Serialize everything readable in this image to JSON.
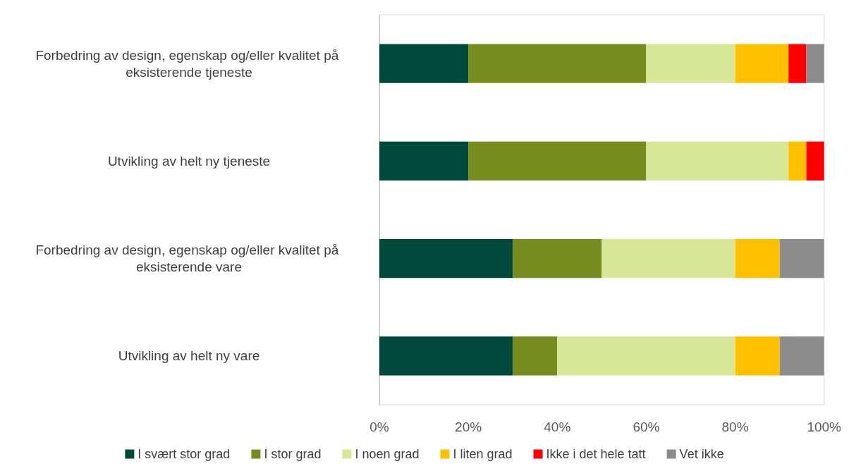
{
  "chart_data": {
    "type": "bar",
    "orientation": "horizontal",
    "stacked": true,
    "categories": [
      "Forbedring av design, egenskap og/eller kvalitet på eksisterende tjeneste",
      "Utvikling av helt ny tjeneste",
      "Forbedring av design, egenskap og/eller kvalitet på eksisterende vare",
      "Utvikling av helt ny vare"
    ],
    "series": [
      {
        "name": "I svært stor grad",
        "color": "#004a3b",
        "values": [
          20,
          20,
          30,
          30
        ]
      },
      {
        "name": "I stor grad",
        "color": "#778c1f",
        "values": [
          40,
          40,
          20,
          10
        ]
      },
      {
        "name": "I noen grad",
        "color": "#d7e796",
        "values": [
          20,
          32,
          30,
          40
        ]
      },
      {
        "name": "I liten grad",
        "color": "#ffc000",
        "values": [
          12,
          4,
          10,
          10
        ]
      },
      {
        "name": "Ikke i det hele tatt",
        "color": "#ff0000",
        "values": [
          4,
          4,
          0,
          0
        ]
      },
      {
        "name": "Vet ikke",
        "color": "#8c8c8c",
        "values": [
          4,
          0,
          10,
          10
        ]
      }
    ],
    "xlim": [
      0,
      100
    ],
    "xticks": [
      {
        "value": 0,
        "label": "0%"
      },
      {
        "value": 20,
        "label": "20%"
      },
      {
        "value": 40,
        "label": "40%"
      },
      {
        "value": 60,
        "label": "60%"
      },
      {
        "value": 80,
        "label": "80%"
      },
      {
        "value": 100,
        "label": "100%"
      }
    ],
    "grid": false,
    "legend": "bottom"
  }
}
